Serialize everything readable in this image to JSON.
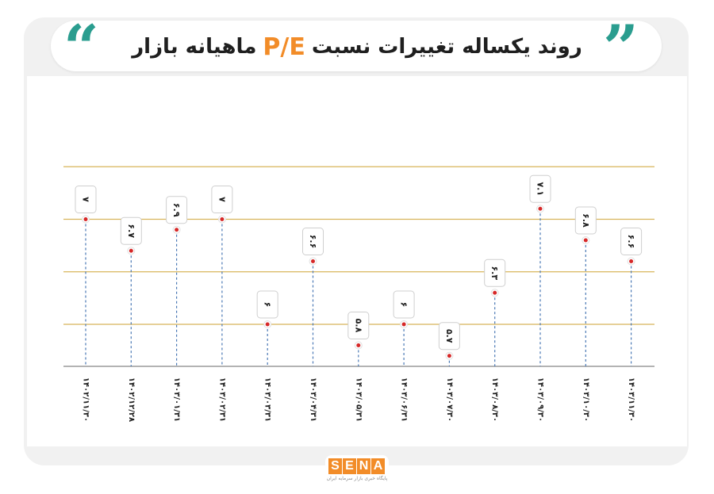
{
  "header": {
    "title_prefix": "روند یکساله تغییرات نسبت",
    "title_accent": "P/E",
    "title_suffix": "ماهیانه بازار",
    "quote_left": "“",
    "quote_right": "”"
  },
  "colors": {
    "accent": "#f28c28",
    "quote": "#2a9d8f",
    "grid": "#d8b45a",
    "stem": "#4a78b5",
    "dot": "#d62828"
  },
  "chart_data": {
    "type": "lollipop",
    "title": "روند یکساله تغییرات نسبت P/E ماهیانه بازار",
    "xlabel": "",
    "ylabel": "",
    "categories": [
      "۱۴۰۲/۱۱/۳۰",
      "۱۴۰۲/۱۲/۲۸",
      "۱۴۰۳/۰۱/۳۱",
      "۱۴۰۳/۰۲/۳۱",
      "۱۴۰۳/۰۳/۳۱",
      "۱۴۰۳/۰۴/۳۱",
      "۱۴۰۳/۰۵/۳۱",
      "۱۴۰۳/۰۶/۳۱",
      "۱۴۰۳/۰۷/۳۰",
      "۱۴۰۳/۰۸/۳۰",
      "۱۴۰۳/۰۹/۳۰",
      "۱۴۰۳/۱۰/۳۰",
      "۱۴۰۳/۱۱/۳۰"
    ],
    "values": [
      7,
      6.7,
      6.9,
      7,
      6,
      6.6,
      5.8,
      6,
      5.7,
      6.3,
      7.1,
      6.8,
      6.6
    ],
    "value_labels": [
      "۷",
      "۶.۷",
      "۶.۹",
      "۷",
      "۶",
      "۶.۶",
      "۵.۸",
      "۶",
      "۵.۷",
      "۶.۳",
      "۷.۱",
      "۶.۸",
      "۶.۶"
    ],
    "ylim": [
      5.6,
      7.6
    ],
    "grid": true,
    "legend": "none"
  },
  "footer": {
    "logo_letters": [
      "S",
      "E",
      "N",
      "A"
    ],
    "logo_subtitle": "پایگاه خبری بازار سرمایه ایران"
  }
}
